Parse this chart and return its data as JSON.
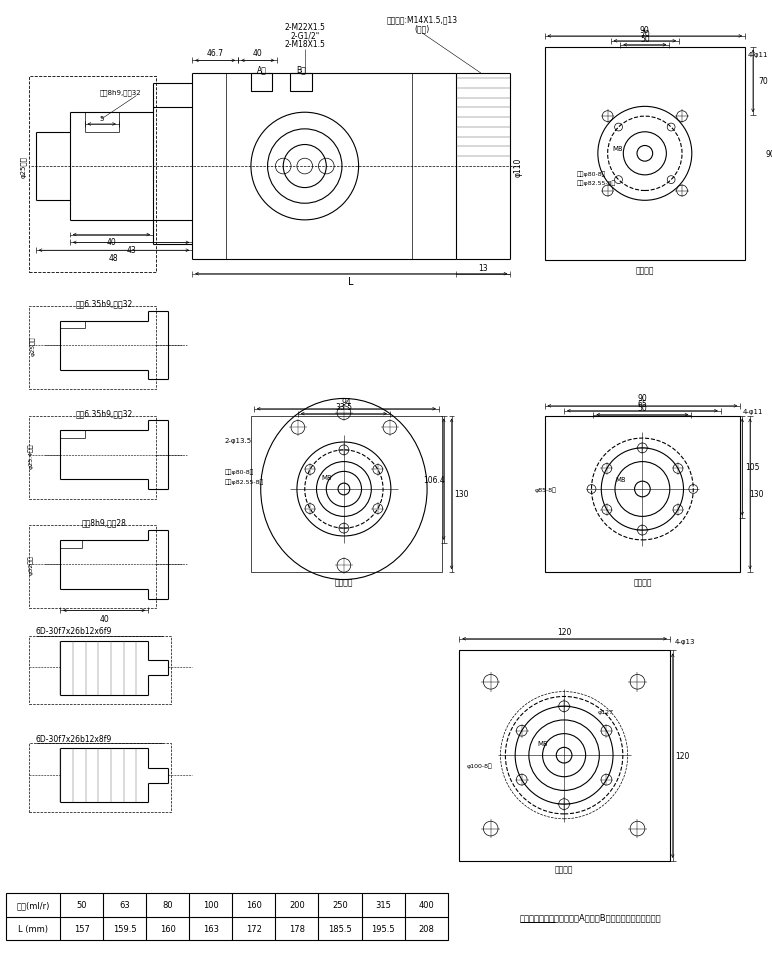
{
  "bg_color": "#ffffff",
  "table": {
    "row1_label": "排量(ml/r)",
    "row1_values": [
      "50",
      "63",
      "80",
      "100",
      "160",
      "200",
      "250",
      "315",
      "400"
    ],
    "row2_label": "L (mm)",
    "row2_values": [
      "157",
      "159.5",
      "160",
      "163",
      "172",
      "178",
      "185.5",
      "195.5",
      "208"
    ]
  },
  "note": "标准旋向：面对输出轴，当A口进油B口回油，马达顺时针旋转"
}
